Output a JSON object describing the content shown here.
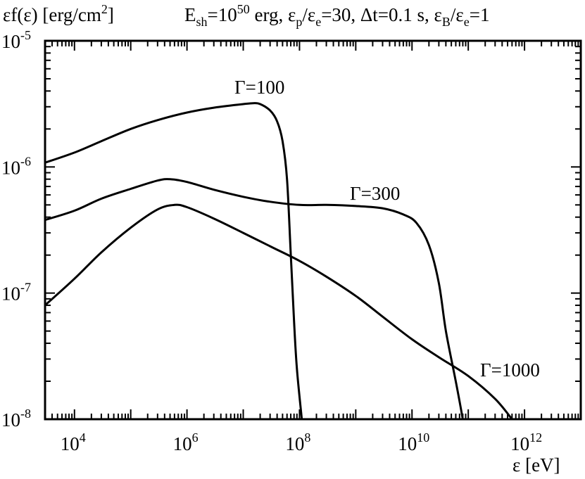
{
  "chart_data": {
    "type": "line",
    "ylabel": "εf(ε) [erg/cm²]",
    "ylabel_main": "εf(ε) [erg/cm",
    "ylabel_sup": "2",
    "ylabel_close": "]",
    "title": "E_sh=10^50 erg, ε_p/ε_e=30, Δt=0.1 s, ε_B/ε_e=1",
    "title_parts": {
      "e": "E",
      "sh": "sh",
      "eq1": "=10",
      "exp50": "50",
      "erg": " erg, ",
      "eps1": "ε",
      "p": "p",
      "slash1": "/",
      "eps2": "ε",
      "e1": "e",
      "eq30": "=30, Δt=0.1 s, ",
      "eps3": "ε",
      "B": "B",
      "slash2": "/",
      "eps4": "ε",
      "e2": "e",
      "eq1end": "=1"
    },
    "xlabel": "ε [eV]",
    "xscale": "log",
    "yscale": "log",
    "xlim": [
      3000,
      10000000000000.0
    ],
    "ylim": [
      1e-08,
      1e-05
    ],
    "xticks": [
      {
        "base": "10",
        "exp": "4",
        "value": 10000.0
      },
      {
        "base": "10",
        "exp": "6",
        "value": 1000000.0
      },
      {
        "base": "10",
        "exp": "8",
        "value": 100000000.0
      },
      {
        "base": "10",
        "exp": "10",
        "value": 10000000000.0
      },
      {
        "base": "10",
        "exp": "12",
        "value": 1000000000000.0
      }
    ],
    "yticks": [
      {
        "base": "10",
        "exp": "-5",
        "value": 1e-05
      },
      {
        "base": "10",
        "exp": "-6",
        "value": 1e-06
      },
      {
        "base": "10",
        "exp": "-7",
        "value": 1e-07
      },
      {
        "base": "10",
        "exp": "-8",
        "value": 1e-08
      }
    ],
    "series": [
      {
        "name": "Γ=100",
        "points": [
          [
            3000,
            1.08e-06
          ],
          [
            10000.0,
            1.3e-06
          ],
          [
            30000.0,
            1.6e-06
          ],
          [
            100000.0,
            2e-06
          ],
          [
            300000.0,
            2.35e-06
          ],
          [
            1000000.0,
            2.7e-06
          ],
          [
            3000000.0,
            2.95e-06
          ],
          [
            10000000.0,
            3.15e-06
          ],
          [
            15000000.0,
            3.2e-06
          ],
          [
            20000000.0,
            3.15e-06
          ],
          [
            30000000.0,
            2.8e-06
          ],
          [
            40000000.0,
            2.3e-06
          ],
          [
            50000000.0,
            1.6e-06
          ],
          [
            60000000.0,
            8e-07
          ],
          [
            70000000.0,
            2e-07
          ],
          [
            80000000.0,
            6e-08
          ],
          [
            90000000.0,
            2.5e-08
          ],
          [
            110000000.0,
            1e-08
          ]
        ]
      },
      {
        "name": "Γ=300",
        "points": [
          [
            3000,
            3.8e-07
          ],
          [
            10000.0,
            4.5e-07
          ],
          [
            30000.0,
            5.6e-07
          ],
          [
            100000.0,
            6.7e-07
          ],
          [
            300000.0,
            7.8e-07
          ],
          [
            500000.0,
            8e-07
          ],
          [
            1000000.0,
            7.6e-07
          ],
          [
            3000000.0,
            6.6e-07
          ],
          [
            10000000.0,
            5.8e-07
          ],
          [
            30000000.0,
            5.3e-07
          ],
          [
            100000000.0,
            5e-07
          ],
          [
            300000000.0,
            5e-07
          ],
          [
            1000000000.0,
            4.9e-07
          ],
          [
            3000000000.0,
            4.7e-07
          ],
          [
            7000000000.0,
            4.2e-07
          ],
          [
            12000000000.0,
            3.6e-07
          ],
          [
            20000000000.0,
            2.4e-07
          ],
          [
            30000000000.0,
            1.2e-07
          ],
          [
            40000000000.0,
            5e-08
          ],
          [
            60000000000.0,
            2e-08
          ],
          [
            80000000000.0,
            1e-08
          ]
        ]
      },
      {
        "name": "Γ=1000",
        "points": [
          [
            3000,
            8e-08
          ],
          [
            10000.0,
            1.3e-07
          ],
          [
            30000.0,
            2.1e-07
          ],
          [
            100000.0,
            3.3e-07
          ],
          [
            300000.0,
            4.6e-07
          ],
          [
            600000.0,
            5e-07
          ],
          [
            1000000.0,
            4.8e-07
          ],
          [
            3000000.0,
            3.9e-07
          ],
          [
            10000000.0,
            3e-07
          ],
          [
            30000000.0,
            2.35e-07
          ],
          [
            100000000.0,
            1.8e-07
          ],
          [
            300000000.0,
            1.35e-07
          ],
          [
            1000000000.0,
            9.5e-08
          ],
          [
            3000000000.0,
            6.5e-08
          ],
          [
            10000000000.0,
            4.3e-08
          ],
          [
            30000000000.0,
            3.1e-08
          ],
          [
            100000000000.0,
            2.2e-08
          ],
          [
            300000000000.0,
            1.45e-08
          ],
          [
            600000000000.0,
            1e-08
          ]
        ]
      }
    ],
    "annotations": [
      {
        "text": "Γ=100",
        "series": 0
      },
      {
        "text": "Γ=300",
        "series": 1
      },
      {
        "text": "Γ=1000",
        "series": 2
      }
    ]
  }
}
